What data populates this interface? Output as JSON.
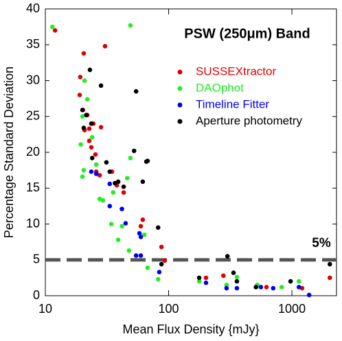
{
  "chart_data": {
    "type": "scatter",
    "title": "PSW (250μm) Band",
    "x_label": "Mean Flux Density  {mJy}",
    "y_label": "Percentage Standard Deviation",
    "xscale": "log",
    "xlim": [
      10,
      2300
    ],
    "xticks": [
      10,
      100,
      1000
    ],
    "ylim": [
      0,
      40
    ],
    "yticks": [
      0,
      5,
      10,
      15,
      20,
      25,
      30,
      35,
      40
    ],
    "legend": "upper right",
    "reference_line": 5,
    "reference_label": "5%",
    "reference_color": "#555555",
    "series": [
      {
        "name": "SUSSEXtractor",
        "color": "#e00000",
        "x": [
          12.0,
          20.5,
          30.5,
          19.2,
          19.0,
          20.2,
          21.9,
          20.8,
          22.7,
          24.5,
          28.3,
          22.7,
          23.6,
          25.5,
          27.6,
          25.9,
          34.7,
          38.0,
          43.2,
          61.7,
          59.5,
          87.5,
          93,
          201,
          278,
          622,
          1210,
          2030
        ],
        "values": [
          37.0,
          33.8,
          34.8,
          30.5,
          28.0,
          25.9,
          25.2,
          23.1,
          23.3,
          24.0,
          23.5,
          21.6,
          20.7,
          19.7,
          16.8,
          17.3,
          17.3,
          15.4,
          14.4,
          10.6,
          9.7,
          6.8,
          4.9,
          2.5,
          2.8,
          1.2,
          1.05,
          2.5
        ]
      },
      {
        "name": "DAOphot",
        "color": "#22ee22",
        "x": [
          11.4,
          49,
          20.8,
          21.9,
          20,
          19.4,
          20.5,
          20,
          24,
          25.9,
          27.6,
          29.4,
          35.5,
          34.3,
          39,
          41.8,
          46.2,
          49,
          63.5,
          47.7,
          67.5,
          82.2,
          177,
          295,
          358,
          524,
          826,
          1140
        ],
        "values": [
          37.5,
          37.7,
          30.0,
          27.4,
          25.0,
          21.1,
          17.5,
          16.6,
          22.1,
          18.3,
          13.5,
          13.3,
          14.4,
          10.0,
          7.8,
          9.7,
          16.4,
          19.2,
          8.5,
          6.3,
          3.9,
          2.3,
          2.0,
          1.5,
          2.6,
          1.5,
          1.2,
          2.0
        ]
      },
      {
        "name": "Timeline Fitter",
        "color": "#0000ee",
        "x": [
          23.6,
          25.9,
          33.3,
          33.3,
          41.8,
          44.8,
          58,
          59.5,
          54.5,
          59.5,
          84,
          201,
          295,
          358,
          560,
          705,
          1140,
          1380
        ],
        "values": [
          17.3,
          17.0,
          15.6,
          12.5,
          12.1,
          10.1,
          8.7,
          8.2,
          5.6,
          5.6,
          3.3,
          1.8,
          1.05,
          1.05,
          1.2,
          1.05,
          1.2,
          0.1
        ]
      },
      {
        "name": "Aperture photometry",
        "color": "#000000",
        "x": [
          20,
          21.5,
          20.5,
          23.6,
          28.3,
          23,
          24,
          31.3,
          33.3,
          36.7,
          39,
          43.2,
          54.5,
          52.5,
          66,
          61.7,
          67.5,
          82.2,
          87.5,
          177,
          300,
          336,
          358,
          511,
          975,
          2030
        ],
        "values": [
          25.9,
          25.2,
          23.4,
          24.0,
          29.3,
          31.5,
          19.2,
          18.6,
          17.3,
          15.7,
          15.9,
          15.2,
          28.5,
          20.2,
          18.7,
          15.9,
          18.8,
          9.5,
          4.4,
          2.5,
          5.5,
          3.2,
          2.0,
          1.2,
          2.0,
          4.4
        ]
      }
    ]
  }
}
